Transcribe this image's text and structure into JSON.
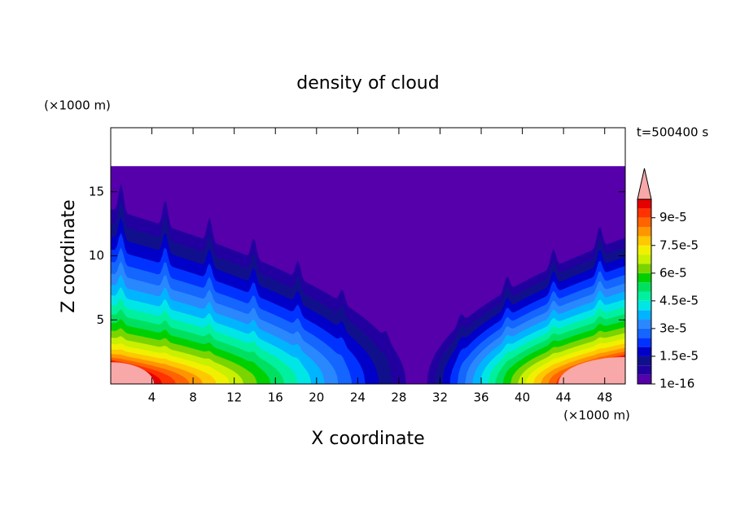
{
  "chart_data": {
    "type": "contour",
    "title": "density of cloud",
    "xlabel": "X coordinate",
    "ylabel": "Z coordinate",
    "xunit": "(×1000 m)",
    "yunit": "(×1000 m)",
    "time_label": "t=500400 s",
    "xlim": [
      0,
      50
    ],
    "ylim": [
      0,
      20
    ],
    "xticks": [
      4,
      8,
      12,
      16,
      20,
      24,
      28,
      32,
      36,
      40,
      44,
      48
    ],
    "yticks": [
      5,
      10,
      15
    ],
    "cloud_top": 17,
    "levels": [
      1e-16,
      5e-06,
      1e-05,
      1.5e-05,
      2e-05,
      2.5e-05,
      3e-05,
      3.5e-05,
      4e-05,
      4.5e-05,
      5e-05,
      5.5e-05,
      6e-05,
      6.5e-05,
      7e-05,
      7.5e-05,
      8e-05,
      8.5e-05,
      9e-05,
      9.5e-05,
      0.0001
    ],
    "colors": [
      "#5500aa",
      "#2200a0",
      "#10108c",
      "#0000c8",
      "#0033ff",
      "#1466ff",
      "#2a88ff",
      "#00b4ff",
      "#00e6e6",
      "#00f0a0",
      "#00e060",
      "#00d000",
      "#7ad400",
      "#c8f000",
      "#f0f000",
      "#ffc800",
      "#ff9600",
      "#ff6400",
      "#ff3200",
      "#e60000"
    ],
    "over_color": "#f8a8a8",
    "colorbar_ticks": [
      {
        "value": 1e-16,
        "label": "1e-16"
      },
      {
        "value": 1.5e-05,
        "label": "1.5e-5"
      },
      {
        "value": 3e-05,
        "label": "3e-5"
      },
      {
        "value": 4.5e-05,
        "label": "4.5e-5"
      },
      {
        "value": 6e-05,
        "label": "6e-5"
      },
      {
        "value": 7.5e-05,
        "label": "7.5e-5"
      },
      {
        "value": 9e-05,
        "label": "9e-5"
      }
    ]
  }
}
